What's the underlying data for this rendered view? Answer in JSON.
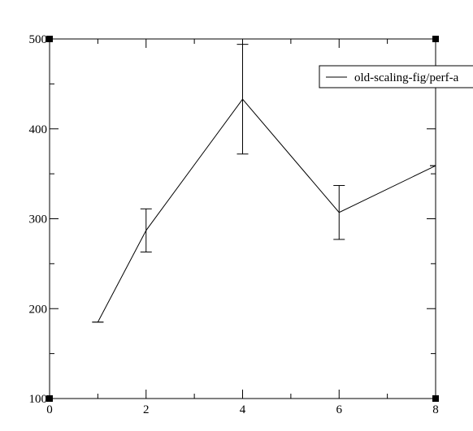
{
  "chart_data": {
    "type": "line",
    "title": "",
    "xlabel": "",
    "ylabel": "",
    "xlim": [
      0,
      8
    ],
    "ylim": [
      100,
      500
    ],
    "x_ticks": [
      0,
      2,
      4,
      6,
      8
    ],
    "x_tick_labels": [
      "0",
      "2",
      "4",
      "6",
      "8"
    ],
    "y_ticks": [
      100,
      200,
      300,
      400,
      500
    ],
    "y_tick_labels": [
      "100",
      "200",
      "300",
      "400",
      "500"
    ],
    "grid": false,
    "legend_position": "top-right",
    "series": [
      {
        "name": "old-scaling-fig/perf-a",
        "color": "#000000",
        "x": [
          1,
          2,
          4,
          6,
          8
        ],
        "y": [
          185,
          287,
          433,
          307,
          359
        ],
        "err_low": [
          185,
          263,
          372,
          277,
          359
        ],
        "err_high": [
          185,
          311,
          494,
          337,
          359
        ]
      }
    ]
  }
}
